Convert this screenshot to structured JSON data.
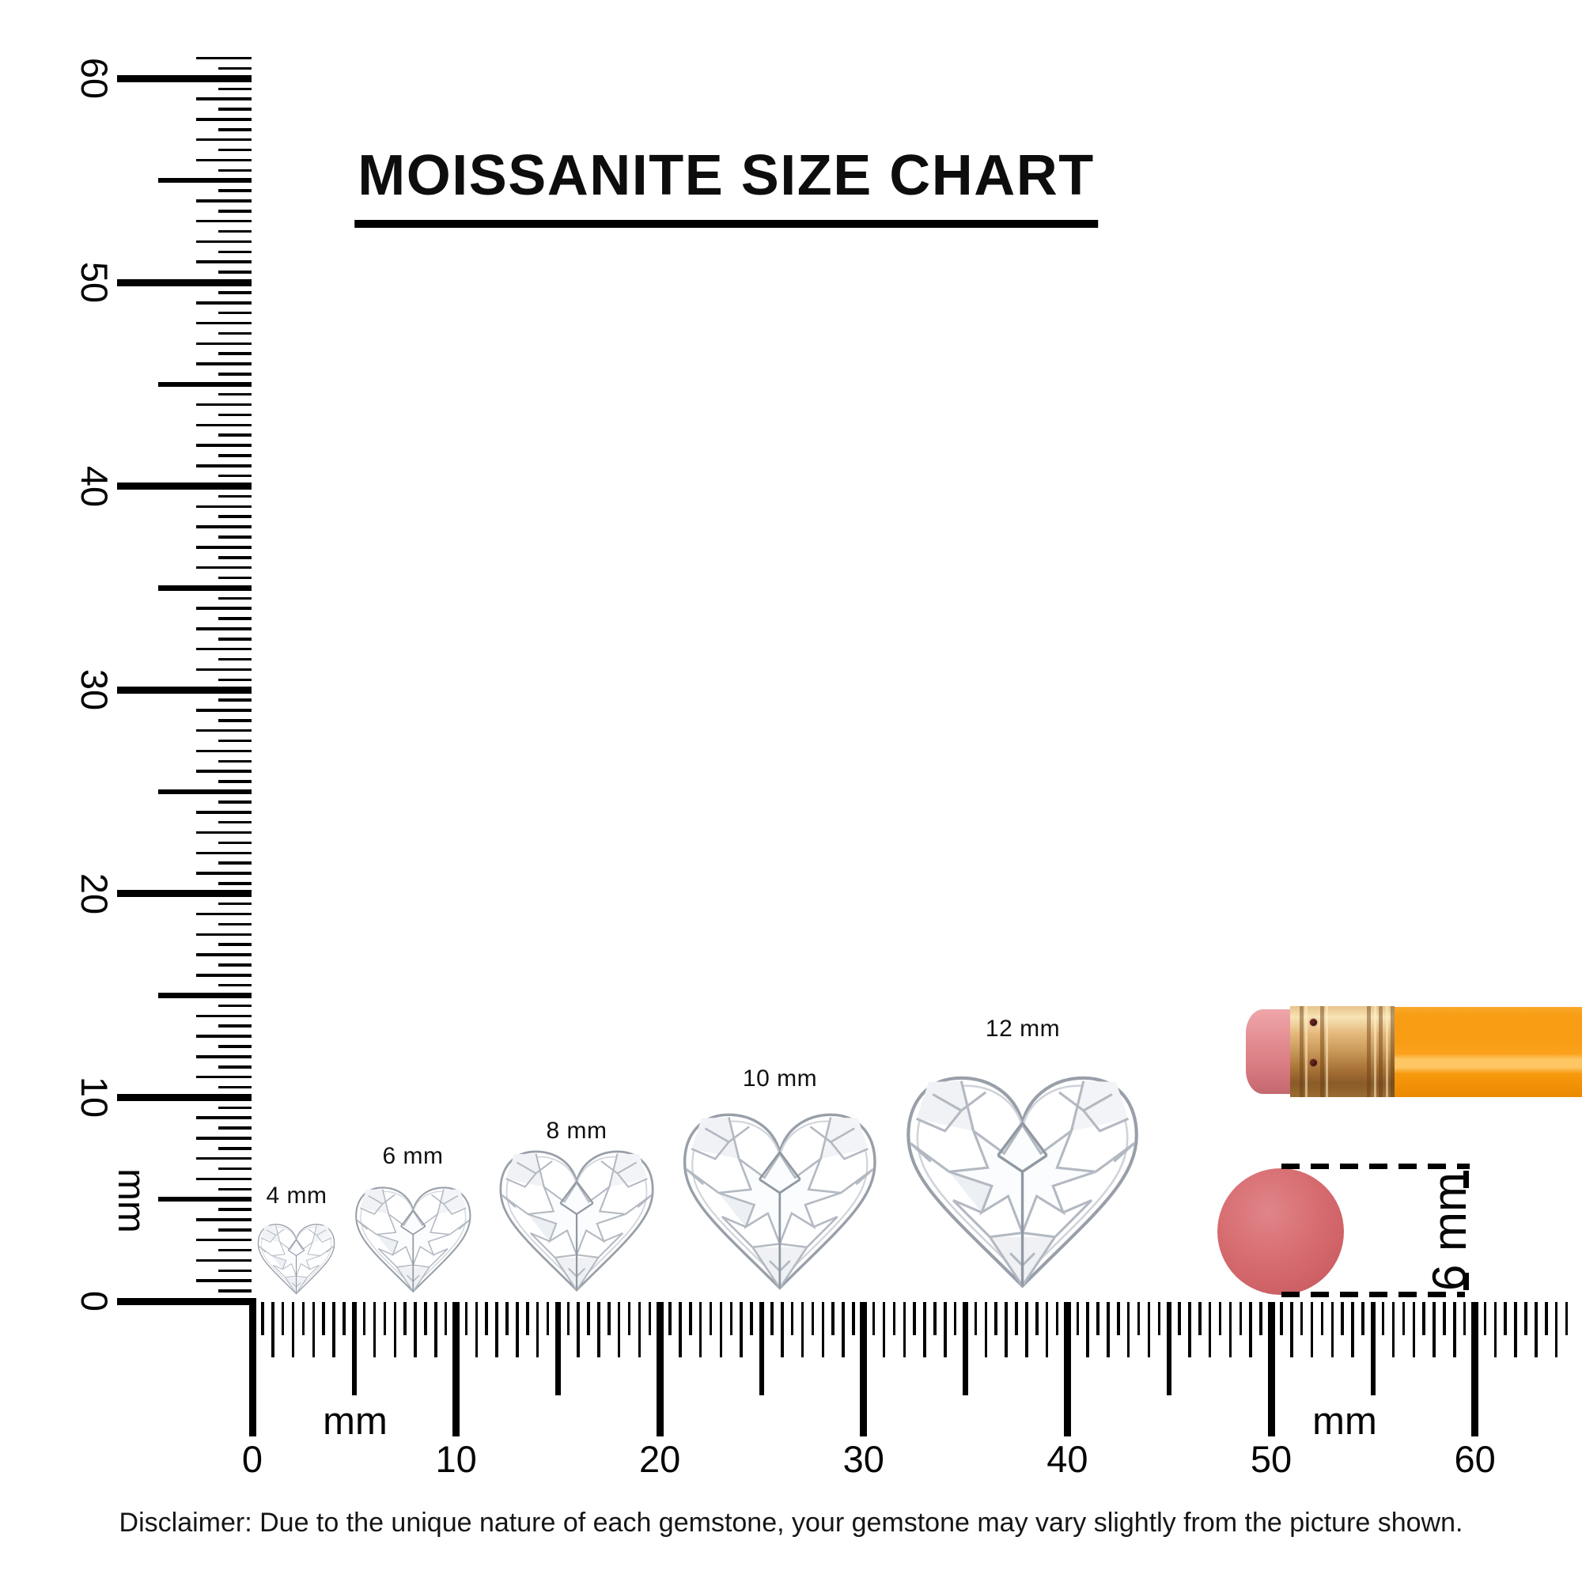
{
  "title": "MOISSANITE SIZE CHART",
  "rulers": {
    "vertical": {
      "numbers": [
        "0",
        "10",
        "20",
        "30",
        "40",
        "50",
        "60"
      ],
      "unit_label": "mm"
    },
    "horizontal": {
      "numbers": [
        "0",
        "10",
        "20",
        "30",
        "40",
        "50",
        "60"
      ],
      "unit_label_left": "mm",
      "unit_label_right": "mm"
    }
  },
  "gems": [
    {
      "label": "4 mm",
      "size_mm": 4
    },
    {
      "label": "6 mm",
      "size_mm": 6
    },
    {
      "label": "8 mm",
      "size_mm": 8
    },
    {
      "label": "10 mm",
      "size_mm": 10
    },
    {
      "label": "12 mm",
      "size_mm": 12
    }
  ],
  "reference_objects": {
    "eraser_disc": {
      "label": "6 mm",
      "diameter_mm": 6,
      "color": "#D66B6F"
    },
    "pencil": {
      "body_color": "#F89D13",
      "ferrule_color": "#C9995A",
      "eraser_color": "#DD8289"
    }
  },
  "disclaimer": "Disclaimer: Due to the unique nature of each gemstone, your gemstone may vary slightly from the picture shown."
}
